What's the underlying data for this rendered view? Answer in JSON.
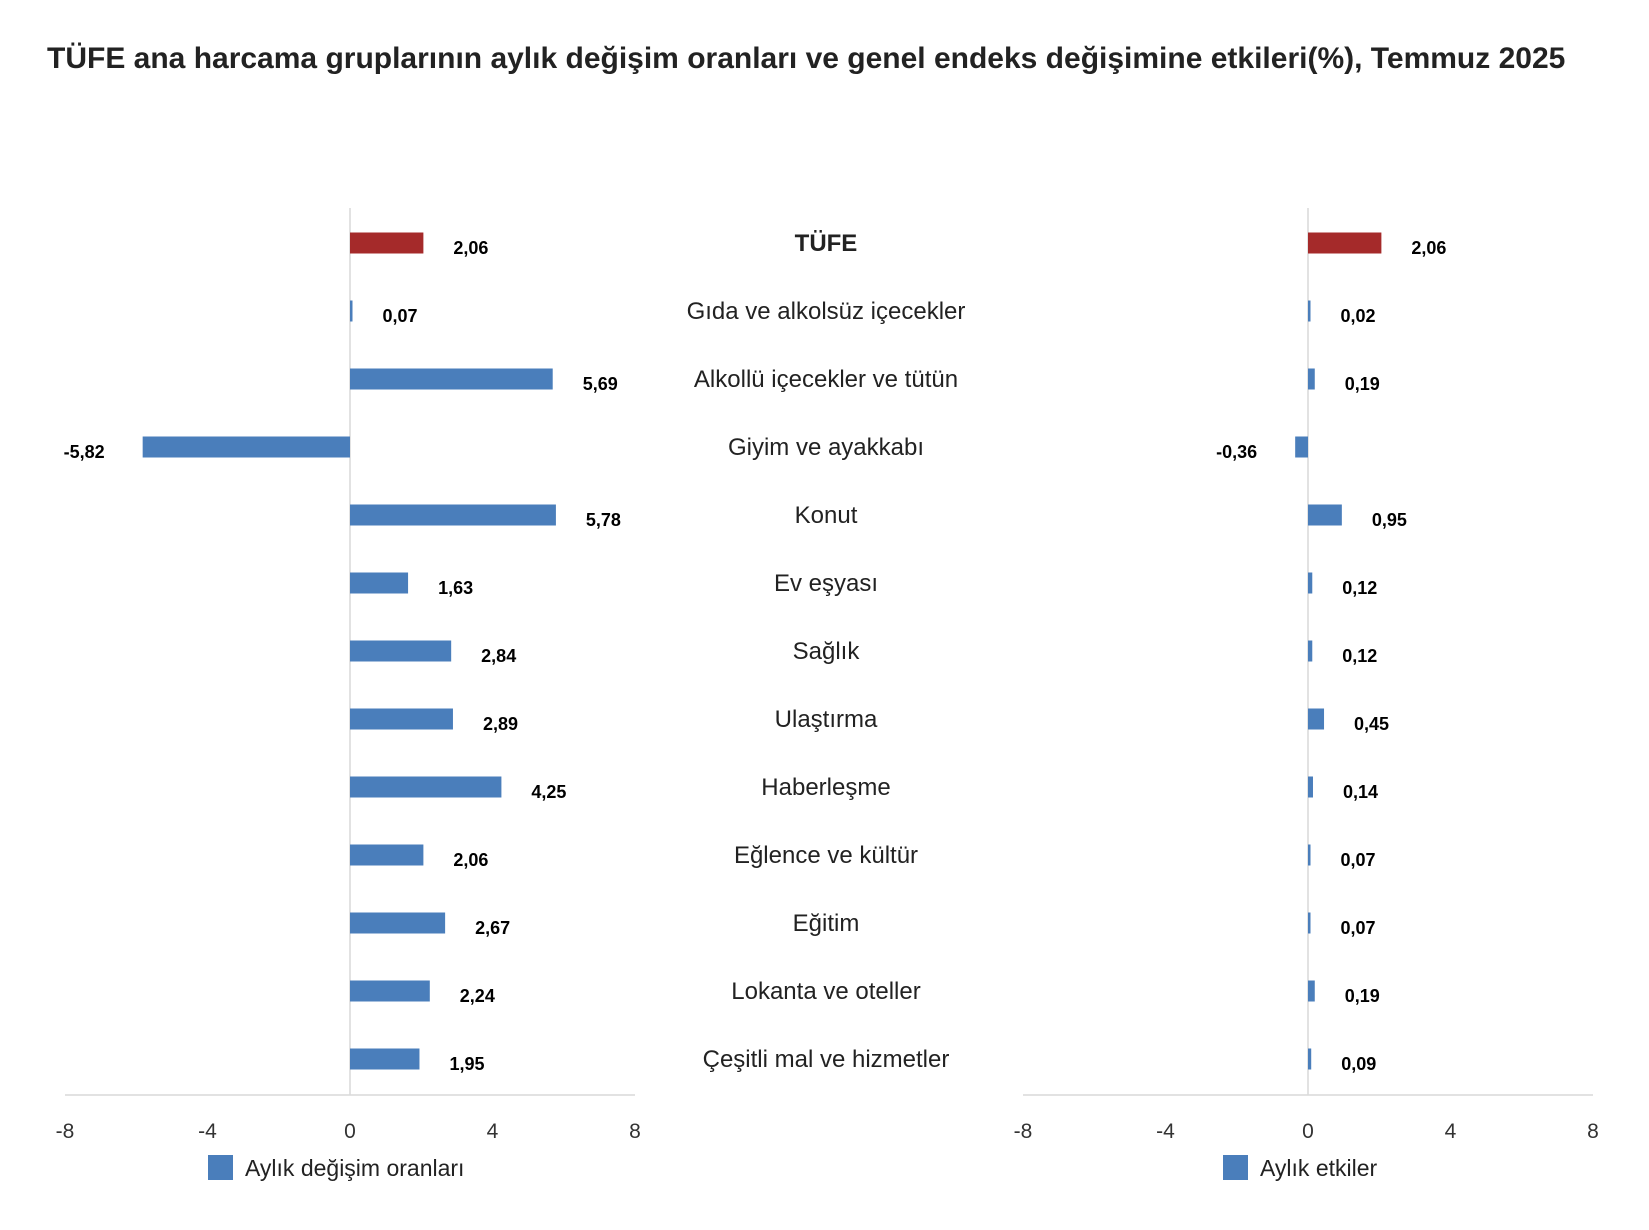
{
  "title": "TÜFE ana harcama gruplarının aylık değişim oranları ve genel endeks değişimine etkileri(%), Temmuz 2025",
  "colors": {
    "highlight": "#a52a2a",
    "series": "#4a7ebb",
    "axis": "#d9d9d9"
  },
  "chart_data": [
    {
      "type": "bar",
      "orientation": "horizontal",
      "categories": [
        "TÜFE",
        "Gıda ve alkolsüz içecekler",
        "Alkollü içecekler ve tütün",
        "Giyim ve ayakkabı",
        "Konut",
        "Ev eşyası",
        "Sağlık",
        "Ulaştırma",
        "Haberleşme",
        "Eğlence ve kültür",
        "Eğitim",
        "Lokanta ve oteller",
        "Çeşitli mal ve hizmetler"
      ],
      "series": [
        {
          "name": "Aylık değişim oranları",
          "values": [
            2.06,
            0.07,
            5.69,
            -5.82,
            5.78,
            1.63,
            2.84,
            2.89,
            4.25,
            2.06,
            2.67,
            2.24,
            1.95
          ]
        }
      ],
      "labels": [
        "2,06",
        "0,07",
        "5,69",
        "-5,82",
        "5,78",
        "1,63",
        "2,84",
        "2,89",
        "4,25",
        "2,06",
        "2,67",
        "2,24",
        "1,95"
      ],
      "xlim": [
        -8,
        8
      ],
      "xticks": [
        "-8",
        "-4",
        "0",
        "4",
        "8"
      ],
      "highlight_index": 0,
      "legend": "Aylık değişim oranları"
    },
    {
      "type": "bar",
      "orientation": "horizontal",
      "categories": [
        "TÜFE",
        "Gıda ve alkolsüz içecekler",
        "Alkollü içecekler ve tütün",
        "Giyim ve ayakkabı",
        "Konut",
        "Ev eşyası",
        "Sağlık",
        "Ulaştırma",
        "Haberleşme",
        "Eğlence ve kültür",
        "Eğitim",
        "Lokanta ve oteller",
        "Çeşitli mal ve hizmetler"
      ],
      "series": [
        {
          "name": "Aylık etkiler",
          "values": [
            2.06,
            0.02,
            0.19,
            -0.36,
            0.95,
            0.12,
            0.12,
            0.45,
            0.14,
            0.07,
            0.07,
            0.19,
            0.09
          ]
        }
      ],
      "labels": [
        "2,06",
        "0,02",
        "0,19",
        "-0,36",
        "0,95",
        "0,12",
        "0,12",
        "0,45",
        "0,14",
        "0,07",
        "0,07",
        "0,19",
        "0,09"
      ],
      "xlim": [
        -8,
        8
      ],
      "xticks": [
        "-8",
        "-4",
        "0",
        "4",
        "8"
      ],
      "highlight_index": 0,
      "legend": "Aylık etkiler"
    }
  ]
}
